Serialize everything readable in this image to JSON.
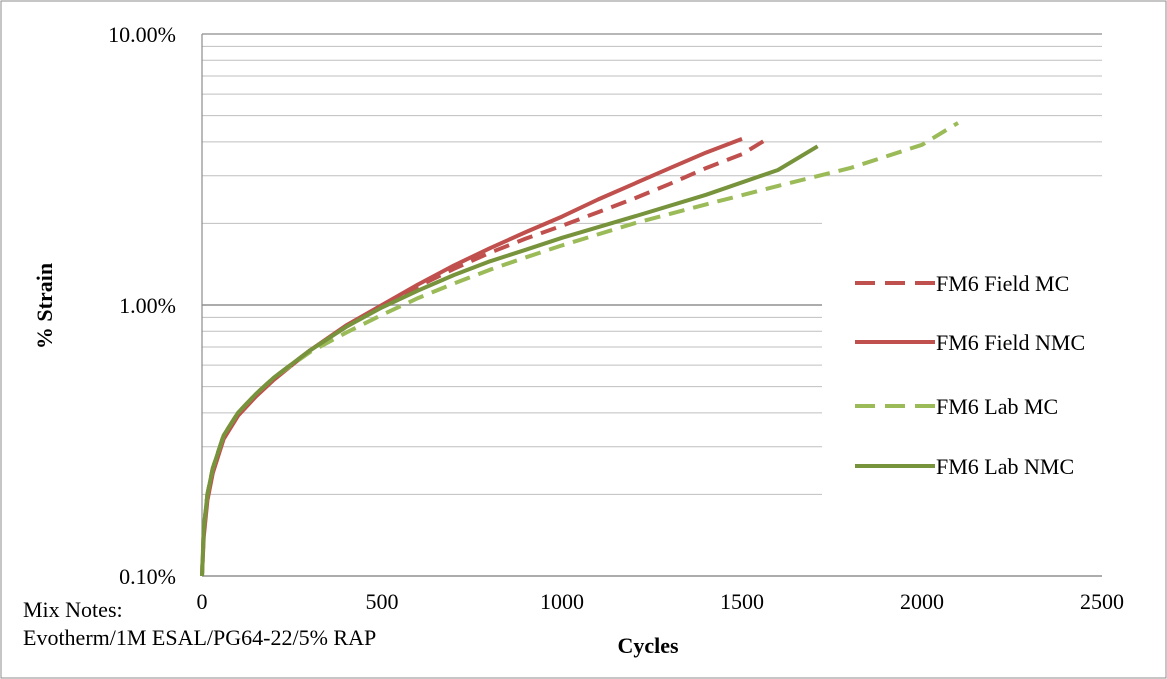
{
  "chart_data": {
    "type": "line",
    "title": "",
    "xlabel": "Cycles",
    "ylabel": "% Strain",
    "xlim": [
      0,
      2500
    ],
    "ylim": [
      0.1,
      10
    ],
    "y_scale": "log",
    "grid": true,
    "legend_position": "right",
    "x_ticks": [
      {
        "value": 0,
        "label": "0"
      },
      {
        "value": 500,
        "label": "500"
      },
      {
        "value": 1000,
        "label": "1000"
      },
      {
        "value": 1500,
        "label": "1500"
      },
      {
        "value": 2000,
        "label": "2000"
      },
      {
        "value": 2500,
        "label": "2500"
      }
    ],
    "y_ticks": [
      {
        "value": 0.1,
        "label": "0.10%"
      },
      {
        "value": 1,
        "label": "1.00%"
      },
      {
        "value": 10,
        "label": "10.00%"
      }
    ],
    "series": [
      {
        "name": "FM6 Field MC",
        "color": "#c0504d",
        "dashed": true,
        "points": [
          [
            0,
            0.1
          ],
          [
            5,
            0.15
          ],
          [
            15,
            0.2
          ],
          [
            30,
            0.25
          ],
          [
            60,
            0.33
          ],
          [
            100,
            0.4
          ],
          [
            150,
            0.47
          ],
          [
            200,
            0.54
          ],
          [
            300,
            0.68
          ],
          [
            400,
            0.83
          ],
          [
            500,
            0.99
          ],
          [
            600,
            1.17
          ],
          [
            700,
            1.36
          ],
          [
            800,
            1.56
          ],
          [
            900,
            1.76
          ],
          [
            1000,
            1.96
          ],
          [
            1100,
            2.2
          ],
          [
            1200,
            2.47
          ],
          [
            1300,
            2.8
          ],
          [
            1400,
            3.2
          ],
          [
            1500,
            3.6
          ],
          [
            1570,
            4.1
          ]
        ]
      },
      {
        "name": "FM6 Field NMC",
        "color": "#c0504d",
        "dashed": false,
        "points": [
          [
            0,
            0.1
          ],
          [
            5,
            0.14
          ],
          [
            15,
            0.19
          ],
          [
            30,
            0.24
          ],
          [
            60,
            0.32
          ],
          [
            100,
            0.39
          ],
          [
            150,
            0.46
          ],
          [
            200,
            0.53
          ],
          [
            300,
            0.68
          ],
          [
            400,
            0.84
          ],
          [
            500,
            1.0
          ],
          [
            600,
            1.19
          ],
          [
            700,
            1.4
          ],
          [
            800,
            1.62
          ],
          [
            900,
            1.86
          ],
          [
            1000,
            2.12
          ],
          [
            1100,
            2.45
          ],
          [
            1200,
            2.8
          ],
          [
            1300,
            3.2
          ],
          [
            1400,
            3.65
          ],
          [
            1500,
            4.1
          ]
        ]
      },
      {
        "name": "FM6 Lab MC",
        "color": "#9bbb59",
        "dashed": true,
        "points": [
          [
            0,
            0.1
          ],
          [
            5,
            0.15
          ],
          [
            15,
            0.2
          ],
          [
            30,
            0.25
          ],
          [
            60,
            0.33
          ],
          [
            100,
            0.4
          ],
          [
            150,
            0.47
          ],
          [
            200,
            0.54
          ],
          [
            300,
            0.67
          ],
          [
            400,
            0.79
          ],
          [
            500,
            0.92
          ],
          [
            600,
            1.06
          ],
          [
            700,
            1.2
          ],
          [
            800,
            1.35
          ],
          [
            900,
            1.5
          ],
          [
            1000,
            1.66
          ],
          [
            1200,
            2.0
          ],
          [
            1400,
            2.35
          ],
          [
            1600,
            2.75
          ],
          [
            1800,
            3.2
          ],
          [
            2000,
            3.9
          ],
          [
            2100,
            4.7
          ]
        ]
      },
      {
        "name": "FM6 Lab NMC",
        "color": "#77933c",
        "dashed": false,
        "points": [
          [
            0,
            0.1
          ],
          [
            5,
            0.15
          ],
          [
            15,
            0.2
          ],
          [
            30,
            0.25
          ],
          [
            60,
            0.33
          ],
          [
            100,
            0.4
          ],
          [
            150,
            0.47
          ],
          [
            200,
            0.54
          ],
          [
            300,
            0.68
          ],
          [
            400,
            0.83
          ],
          [
            500,
            0.98
          ],
          [
            600,
            1.13
          ],
          [
            700,
            1.29
          ],
          [
            800,
            1.45
          ],
          [
            900,
            1.6
          ],
          [
            1000,
            1.77
          ],
          [
            1200,
            2.12
          ],
          [
            1400,
            2.55
          ],
          [
            1600,
            3.15
          ],
          [
            1710,
            3.85
          ]
        ]
      }
    ]
  },
  "notes": {
    "line1": "Mix Notes:",
    "line2": "Evotherm/1M ESAL/PG64-22/5% RAP"
  }
}
